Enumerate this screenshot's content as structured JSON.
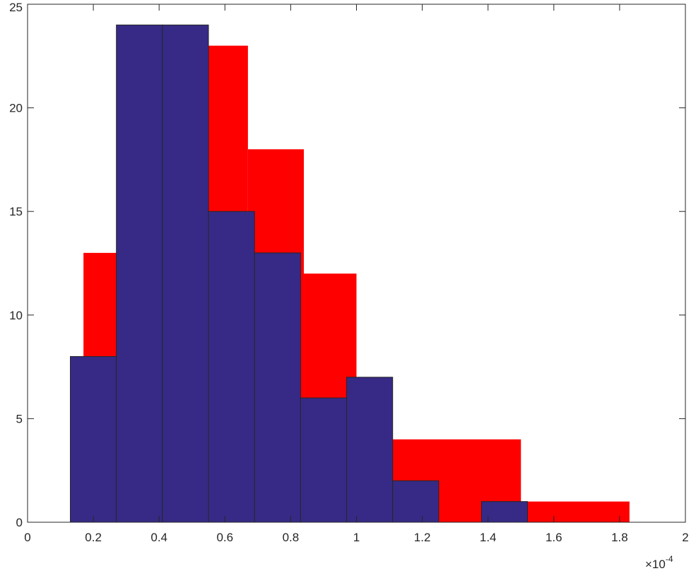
{
  "chart_data": {
    "type": "bar",
    "subtype": "overlaid-histogram",
    "title": "",
    "xlabel": "",
    "ylabel": "",
    "xlim": [
      0,
      2
    ],
    "ylim": [
      0,
      25
    ],
    "x_ticks": [
      0,
      0.2,
      0.4,
      0.6,
      0.8,
      1,
      1.2,
      1.4,
      1.6,
      1.8,
      2
    ],
    "x_tick_labels": [
      "0",
      "0.2",
      "0.4",
      "0.6",
      "0.8",
      "1",
      "1.2",
      "1.4",
      "1.6",
      "1.8",
      "2"
    ],
    "y_ticks": [
      0,
      5,
      10,
      15,
      20,
      25
    ],
    "y_tick_labels": [
      "0",
      "5",
      "10",
      "15",
      "20",
      "25"
    ],
    "x_exponent": {
      "base": "×10",
      "power": "-4"
    },
    "grid": false,
    "box": true,
    "series": [
      {
        "color": "#ff0000",
        "edge": "none",
        "bins": [
          {
            "x0": 0.17,
            "x1": 0.27,
            "count": 13
          },
          {
            "x0": 0.27,
            "x1": 0.41,
            "count": 24
          },
          {
            "x0": 0.41,
            "x1": 0.55,
            "count": 24
          },
          {
            "x0": 0.55,
            "x1": 0.67,
            "count": 23
          },
          {
            "x0": 0.67,
            "x1": 0.84,
            "count": 18
          },
          {
            "x0": 0.84,
            "x1": 1.0,
            "count": 12
          },
          {
            "x0": 1.0,
            "x1": 1.11,
            "count": 7
          },
          {
            "x0": 1.11,
            "x1": 1.5,
            "count": 4
          },
          {
            "x0": 1.5,
            "x1": 1.83,
            "count": 1
          }
        ]
      },
      {
        "color": "#362a86",
        "edge": "#262626",
        "bins": [
          {
            "x0": 0.13,
            "x1": 0.27,
            "count": 8
          },
          {
            "x0": 0.27,
            "x1": 0.41,
            "count": 24
          },
          {
            "x0": 0.41,
            "x1": 0.55,
            "count": 24
          },
          {
            "x0": 0.55,
            "x1": 0.69,
            "count": 15
          },
          {
            "x0": 0.69,
            "x1": 0.83,
            "count": 13
          },
          {
            "x0": 0.83,
            "x1": 0.97,
            "count": 6
          },
          {
            "x0": 0.97,
            "x1": 1.11,
            "count": 7
          },
          {
            "x0": 1.11,
            "x1": 1.25,
            "count": 2
          },
          {
            "x0": 1.25,
            "x1": 1.38,
            "count": 0
          },
          {
            "x0": 1.38,
            "x1": 1.52,
            "count": 1
          }
        ]
      }
    ]
  }
}
